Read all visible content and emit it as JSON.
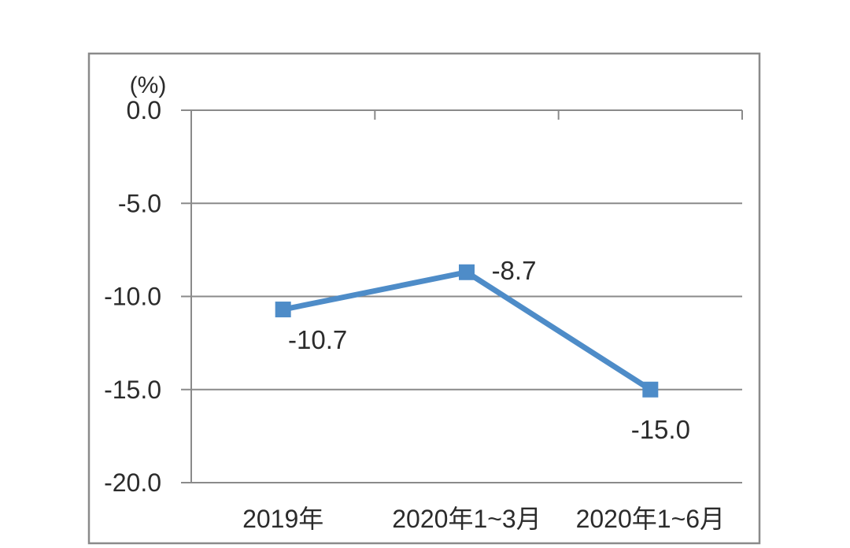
{
  "chart_data": {
    "type": "line",
    "title": "",
    "unit_label": "(%)",
    "categories": [
      "2019年",
      "2020年1~3月",
      "2020年1~6月"
    ],
    "series": [
      {
        "name": "",
        "values": [
          -10.7,
          -8.7,
          -15.0
        ]
      }
    ],
    "data_labels": [
      "-10.7",
      "-8.7",
      "-15.0"
    ],
    "y_ticks": [
      {
        "label": "0.0",
        "value": 0
      },
      {
        "label": "-5.0",
        "value": -5
      },
      {
        "label": "-10.0",
        "value": -10
      },
      {
        "label": "-15.0",
        "value": -15
      },
      {
        "label": "-20.0",
        "value": -20
      }
    ],
    "ylim": [
      -20,
      0
    ],
    "xlabel": "",
    "ylabel": "(%)",
    "grid": true,
    "legend_position": "none",
    "marker": "square",
    "colors": {
      "line": "#4E8CC8",
      "marker": "#4E8CC8",
      "grid": "#8A8A8A",
      "axis": "#8A8A8A",
      "border": "#8A8A8A",
      "text": "#2B2B2B",
      "background": "#FFFFFF"
    }
  }
}
